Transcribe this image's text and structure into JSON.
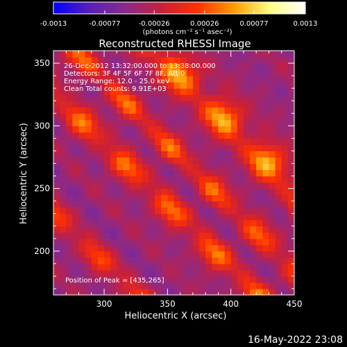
{
  "chart_data": {
    "type": "heatmap",
    "title": "Reconstructed RHESSI Image",
    "xlabel": "Heliocentric X (arcsec)",
    "ylabel": "Heliocentric Y (arcsec)",
    "xlim": [
      260,
      450
    ],
    "ylim": [
      165,
      360
    ],
    "x_ticks": [
      300,
      350,
      400,
      450
    ],
    "y_ticks": [
      200,
      250,
      300,
      350
    ],
    "colorbar": {
      "min": -0.0013,
      "max": 0.0013,
      "tick_labels": [
        "-0.0013",
        "-0.00077",
        "-0.00026",
        "0.00026",
        "0.00077",
        "0.0013"
      ],
      "tick_values": [
        -0.0013,
        -0.00077,
        -0.00026,
        0.00026,
        0.00077,
        0.0013
      ],
      "units": "(photons cm⁻² s⁻¹ asec⁻²)",
      "colors": [
        "#0000ff",
        "#5a1fb8",
        "#8a2a8a",
        "#c8203a",
        "#ff3000",
        "#ff9a00",
        "#ffff80",
        "#ffffff"
      ]
    },
    "annotations": [
      "26-Dec-2012 13:32:00.000 to 13:38:00.000",
      "Detectors: 3F 4F 5F 6F 7F 8F, Att 0",
      "Energy Range: 12.0 - 25.0 keV",
      "Clean     Total counts: 9.91E+03"
    ],
    "peak_label": "Position of Peak = [435,265]",
    "bands": [
      {
        "name": "",
        "a": 1.0,
        "b": 0.0,
        "offset": 140,
        "width": 14,
        "level": 0.0011
      },
      {
        "name": "",
        "a": 1.0,
        "b": 0.0,
        "offset": 75,
        "width": 10,
        "level": 0.0008
      },
      {
        "name": "",
        "a": 1.0,
        "b": 0.0,
        "offset": 25,
        "width": 10,
        "level": 0.0009
      },
      {
        "name": "",
        "a": 1.0,
        "b": 0.0,
        "offset": -70,
        "width": 9,
        "level": 0.0007
      }
    ]
  },
  "footer": {
    "timestamp": "16-May-2022 23:08"
  }
}
